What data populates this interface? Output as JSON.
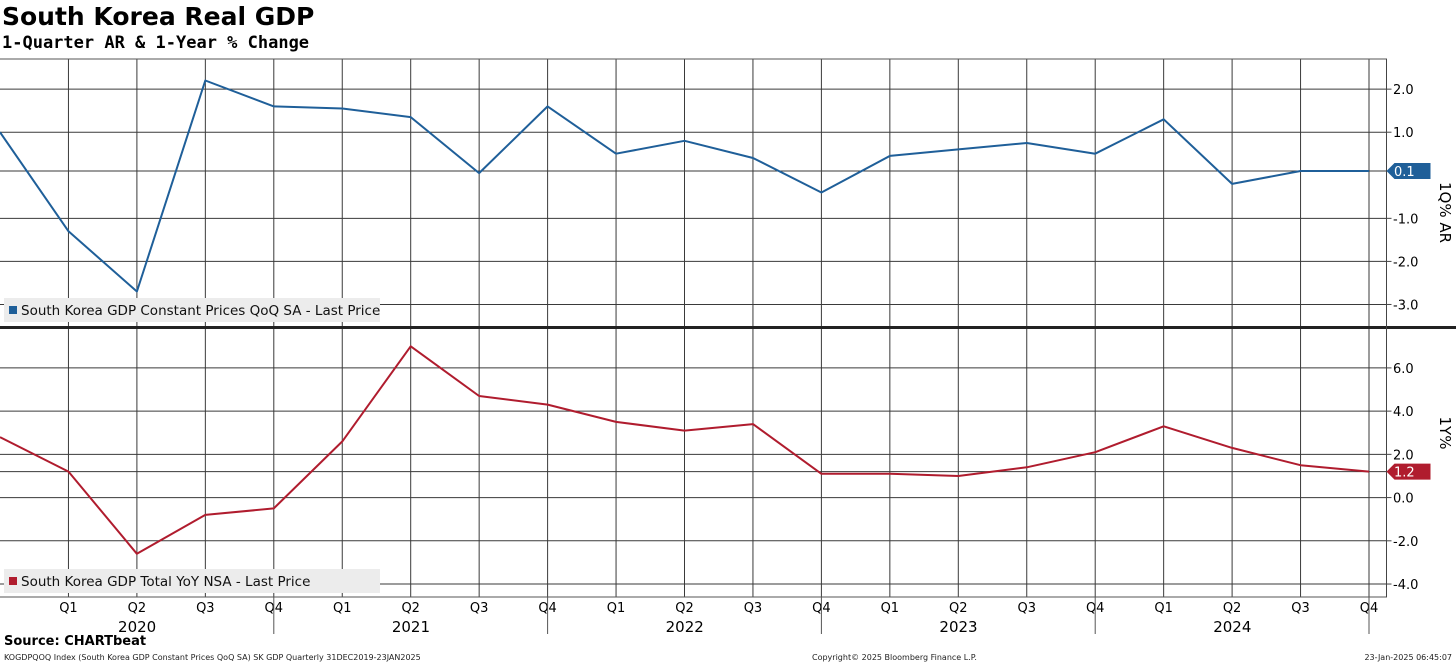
{
  "title": "South Korea Real GDP",
  "subtitle": "1-Quarter AR & 1-Year % Change",
  "source": "Source: CHARTbeat",
  "footer": {
    "left": "KOGDPQOQ Index (South Korea GDP Constant Prices QoQ SA) SK GDP  Quarterly 31DEC2019-23JAN2025",
    "center": "Copyright© 2025 Bloomberg Finance L.P.",
    "right": "23-Jan-2025 06:45:07"
  },
  "chart_data": [
    {
      "type": "line",
      "categories": [
        "Q4 2019",
        "Q1 2020",
        "Q2 2020",
        "Q3 2020",
        "Q4 2020",
        "Q1 2021",
        "Q2 2021",
        "Q3 2021",
        "Q4 2021",
        "Q1 2022",
        "Q2 2022",
        "Q3 2022",
        "Q4 2022",
        "Q1 2023",
        "Q2 2023",
        "Q3 2023",
        "Q4 2023",
        "Q1 2024",
        "Q2 2024",
        "Q3 2024",
        "Q4 2024"
      ],
      "series": [
        {
          "name": "South Korea GDP Constant Prices QoQ SA - Last Price",
          "color": "#1f5f99",
          "values": [
            1.0,
            -1.3,
            -2.7,
            2.2,
            1.6,
            1.55,
            1.35,
            0.05,
            1.6,
            0.5,
            0.8,
            0.4,
            -0.4,
            0.45,
            0.6,
            0.75,
            0.5,
            1.3,
            -0.2,
            0.1,
            0.1
          ],
          "last_value_label": "0.1"
        }
      ],
      "ylabel": "1Q% AR",
      "ylim": [
        -3.5,
        2.7
      ],
      "yticks": [
        "2.0",
        "1.0",
        "0.1",
        "-1.0",
        "-2.0",
        "-3.0"
      ],
      "grid": true,
      "legend": "bottom-left"
    },
    {
      "type": "line",
      "categories": [
        "Q4 2019",
        "Q1 2020",
        "Q2 2020",
        "Q3 2020",
        "Q4 2020",
        "Q1 2021",
        "Q2 2021",
        "Q3 2021",
        "Q4 2021",
        "Q1 2022",
        "Q2 2022",
        "Q3 2022",
        "Q4 2022",
        "Q1 2023",
        "Q2 2023",
        "Q3 2023",
        "Q4 2023",
        "Q1 2024",
        "Q2 2024",
        "Q3 2024",
        "Q4 2024"
      ],
      "series": [
        {
          "name": "South Korea GDP Total YoY NSA - Last Price",
          "color": "#b01c2e",
          "values": [
            2.8,
            1.2,
            -2.6,
            -0.8,
            -0.5,
            2.6,
            7.0,
            4.7,
            4.3,
            3.5,
            3.1,
            3.4,
            1.1,
            1.1,
            1.0,
            1.4,
            2.1,
            3.3,
            2.3,
            1.5,
            1.2
          ],
          "last_value_label": "1.2"
        }
      ],
      "ylabel": "1Y%",
      "ylim": [
        -4.6,
        7.8
      ],
      "yticks": [
        "6.0",
        "4.0",
        "2.0",
        "1.2",
        "0.0",
        "-2.0",
        "-4.0"
      ],
      "grid": true,
      "legend": "bottom-left"
    }
  ],
  "x_axis": {
    "quarter_labels": [
      "Q1",
      "Q2",
      "Q3",
      "Q4",
      "Q1",
      "Q2",
      "Q3",
      "Q4",
      "Q1",
      "Q2",
      "Q3",
      "Q4",
      "Q1",
      "Q2",
      "Q3",
      "Q4",
      "Q1",
      "Q2",
      "Q3",
      "Q4"
    ],
    "year_labels": [
      "2020",
      "2021",
      "2022",
      "2023",
      "2024"
    ]
  }
}
